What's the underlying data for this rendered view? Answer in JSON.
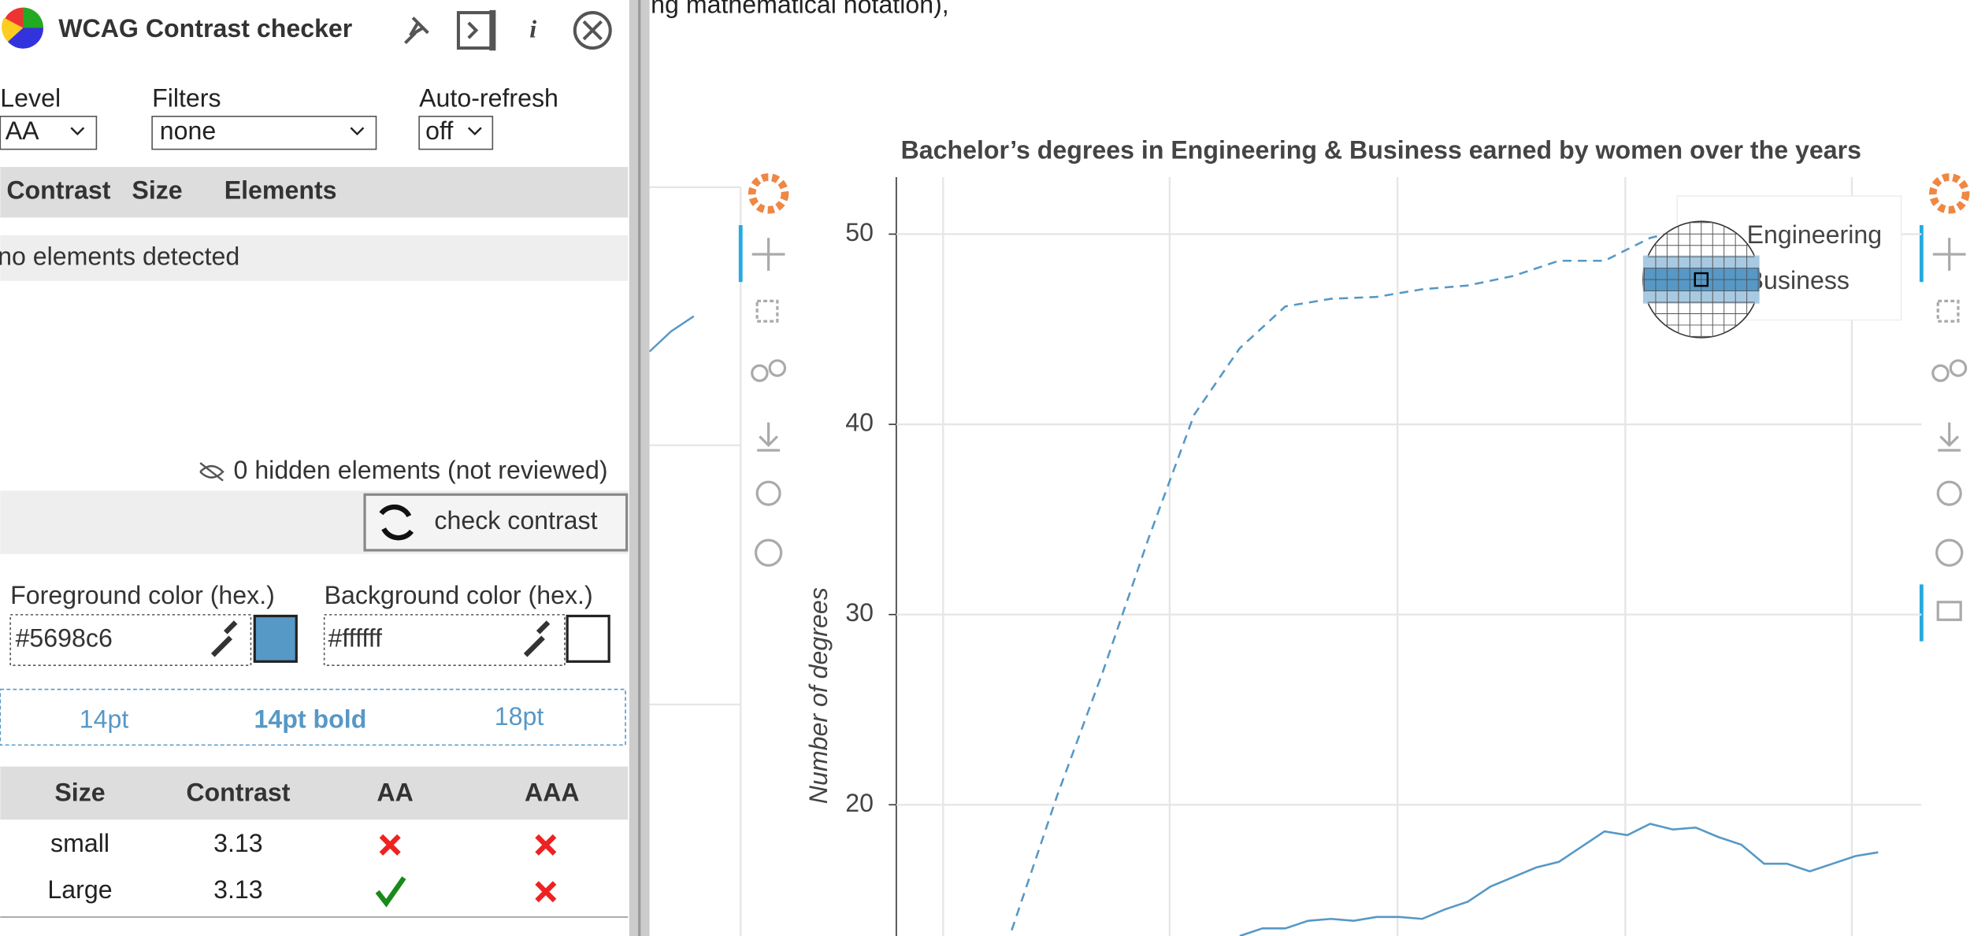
{
  "doc_text": "ng mathematical notation),",
  "panel": {
    "title": "WCAG Contrast checker",
    "level": {
      "label": "Level",
      "value": "AA"
    },
    "filters": {
      "label": "Filters",
      "value": "none"
    },
    "refresh": {
      "label": "Auto-refresh",
      "value": "off"
    },
    "columns": [
      "Contrast",
      "Size",
      "Elements"
    ],
    "empty": "no elements detected",
    "hidden": "0 hidden elements (not reviewed)",
    "button": "check contrast",
    "fg": {
      "label": "Foreground color (hex.)",
      "value": "#5698c6"
    },
    "bg": {
      "label": "Background color (hex.)",
      "value": "#ffffff"
    },
    "samples": [
      "14pt",
      "14pt bold",
      "18pt"
    ],
    "results": {
      "header": [
        "Size",
        "Contrast",
        "AA",
        "AAA"
      ],
      "rows": [
        {
          "size": "small",
          "contrast": "3.13",
          "aa": false,
          "aaa": false
        },
        {
          "size": "Large",
          "contrast": "3.13",
          "aa": true,
          "aaa": false
        }
      ]
    }
  },
  "chart_data": {
    "type": "line",
    "title": "Bachelor’s degrees in Engineering & Business earned by women over the years",
    "ylabel": "Number of degrees",
    "ylim": [
      13.1,
      53
    ],
    "yticks": [
      20,
      30,
      40,
      50
    ],
    "xlim": [
      -2.06,
      42.9
    ],
    "grid": true,
    "series": [
      {
        "name": "Engineering",
        "color": "#5698c6",
        "dash": true,
        "x": [
          3,
          5,
          7,
          9,
          11,
          13,
          15,
          17,
          19,
          21,
          23,
          25,
          27,
          29,
          31,
          33
        ],
        "values": [
          13.4,
          20.5,
          27,
          34,
          40.5,
          44,
          46.2,
          46.6,
          46.7,
          47.1,
          47.3,
          47.8,
          48.6,
          48.6,
          49.8,
          50.4
        ]
      },
      {
        "name": "Business",
        "color": "#5698c6",
        "dash": false,
        "x": [
          13,
          14,
          15,
          16,
          17,
          18,
          19,
          20,
          21,
          22,
          23,
          24,
          25,
          26,
          27,
          28,
          29,
          30,
          31,
          32,
          33,
          34,
          35,
          36,
          37,
          38,
          39,
          40,
          41
        ],
        "values": [
          13.1,
          13.5,
          13.5,
          13.9,
          14,
          13.9,
          14.1,
          14.1,
          14,
          14.5,
          14.9,
          15.7,
          16.2,
          16.7,
          17,
          17.8,
          18.6,
          18.4,
          19,
          18.7,
          18.8,
          18.3,
          17.9,
          16.9,
          16.9,
          16.5,
          16.9,
          17.3,
          17.5
        ]
      }
    ]
  }
}
